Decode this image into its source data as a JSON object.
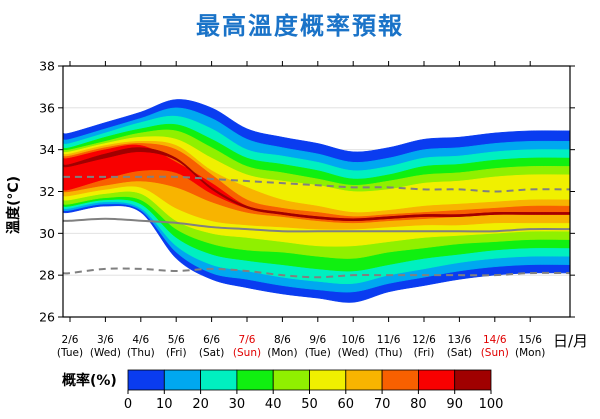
{
  "title": "最高溫度概率預報",
  "chart_data": {
    "type": "area",
    "title": "最高溫度概率預報",
    "ylabel": "溫度(°C)",
    "xlabel": "日/月",
    "ylim": [
      26,
      38
    ],
    "yticks": [
      26,
      28,
      30,
      32,
      34,
      36,
      38
    ],
    "categories": [
      {
        "date": "2/6",
        "day": "(Tue)",
        "red": false
      },
      {
        "date": "3/6",
        "day": "(Wed)",
        "red": false
      },
      {
        "date": "4/6",
        "day": "(Thu)",
        "red": false
      },
      {
        "date": "5/6",
        "day": "(Fri)",
        "red": false
      },
      {
        "date": "6/6",
        "day": "(Sat)",
        "red": false
      },
      {
        "date": "7/6",
        "day": "(Sun)",
        "red": true
      },
      {
        "date": "8/6",
        "day": "(Mon)",
        "red": false
      },
      {
        "date": "9/6",
        "day": "(Tue)",
        "red": false
      },
      {
        "date": "10/6",
        "day": "(Wed)",
        "red": false
      },
      {
        "date": "11/6",
        "day": "(Thu)",
        "red": false
      },
      {
        "date": "12/6",
        "day": "(Fri)",
        "red": false
      },
      {
        "date": "13/6",
        "day": "(Sat)",
        "red": false
      },
      {
        "date": "14/6",
        "day": "(Sun)",
        "red": true
      },
      {
        "date": "15/6",
        "day": "(Mon)",
        "red": false
      }
    ],
    "bands": [
      {
        "level": "0-10",
        "color": "#0a3cf0",
        "upper": [
          34.8,
          35.3,
          35.8,
          36.4,
          36.0,
          35.0,
          34.6,
          34.3,
          33.9,
          34.1,
          34.5,
          34.6,
          34.8,
          34.9
        ],
        "lower": [
          31.0,
          31.3,
          31.0,
          28.8,
          27.8,
          27.4,
          27.1,
          26.9,
          26.7,
          27.2,
          27.5,
          27.8,
          28.0,
          28.1
        ]
      },
      {
        "level": "10-20",
        "color": "#00a8f0",
        "upper": [
          34.5,
          35.0,
          35.5,
          36.0,
          35.5,
          34.5,
          34.1,
          33.8,
          33.4,
          33.6,
          34.0,
          34.1,
          34.3,
          34.4
        ],
        "lower": [
          31.1,
          31.4,
          31.1,
          29.1,
          28.1,
          27.8,
          27.5,
          27.3,
          27.2,
          27.6,
          27.9,
          28.2,
          28.4,
          28.5
        ]
      },
      {
        "level": "20-30",
        "color": "#00f0c0",
        "upper": [
          34.3,
          34.8,
          35.3,
          35.6,
          35.0,
          34.0,
          33.7,
          33.4,
          33.0,
          33.2,
          33.6,
          33.7,
          33.9,
          34.0
        ],
        "lower": [
          31.2,
          31.5,
          31.2,
          29.4,
          28.5,
          28.2,
          27.9,
          27.7,
          27.6,
          28.0,
          28.3,
          28.6,
          28.8,
          28.9
        ]
      },
      {
        "level": "30-40",
        "color": "#10f010",
        "upper": [
          34.1,
          34.6,
          35.0,
          35.2,
          34.5,
          33.6,
          33.3,
          33.0,
          32.6,
          32.8,
          33.2,
          33.3,
          33.5,
          33.6
        ],
        "lower": [
          31.3,
          31.6,
          31.4,
          29.8,
          29.0,
          28.7,
          28.5,
          28.3,
          28.2,
          28.5,
          28.8,
          29.0,
          29.2,
          29.3
        ]
      },
      {
        "level": "40-50",
        "color": "#90f000",
        "upper": [
          34.0,
          34.4,
          34.8,
          34.9,
          34.1,
          33.2,
          32.9,
          32.6,
          32.3,
          32.5,
          32.8,
          32.9,
          33.1,
          33.2
        ],
        "lower": [
          31.4,
          31.7,
          31.6,
          30.2,
          29.5,
          29.2,
          29.1,
          28.9,
          28.8,
          29.1,
          29.3,
          29.5,
          29.6,
          29.7
        ]
      },
      {
        "level": "50-60",
        "color": "#f0f000",
        "upper": [
          33.9,
          34.3,
          34.6,
          34.5,
          33.6,
          32.8,
          32.5,
          32.3,
          32.0,
          32.1,
          32.4,
          32.5,
          32.7,
          32.8
        ],
        "lower": [
          31.6,
          31.9,
          31.9,
          30.6,
          30.0,
          29.8,
          29.6,
          29.4,
          29.4,
          29.6,
          29.8,
          29.9,
          30.0,
          30.1
        ]
      },
      {
        "level": "60-70",
        "color": "#f8b400",
        "upper": [
          33.8,
          34.2,
          34.4,
          34.2,
          33.0,
          32.2,
          31.6,
          31.3,
          31.0,
          31.1,
          31.3,
          31.4,
          31.5,
          31.6
        ],
        "lower": [
          31.8,
          32.1,
          32.2,
          31.2,
          30.6,
          30.4,
          30.3,
          30.2,
          30.2,
          30.3,
          30.4,
          30.4,
          30.5,
          30.5
        ]
      },
      {
        "level": "70-80",
        "color": "#f86000",
        "upper": [
          33.7,
          34.1,
          34.3,
          34.0,
          32.8,
          31.6,
          31.2,
          31.0,
          30.8,
          30.9,
          31.0,
          31.1,
          31.2,
          31.3
        ],
        "lower": [
          32.0,
          32.3,
          32.5,
          32.2,
          31.5,
          31.0,
          30.8,
          30.6,
          30.5,
          30.6,
          30.7,
          30.8,
          30.9,
          30.9
        ]
      },
      {
        "level": "80-90",
        "color": "#f80000",
        "upper": [
          33.6,
          34.0,
          34.2,
          33.4,
          32.4,
          31.3,
          31.0,
          30.8,
          30.7,
          30.8,
          30.9,
          30.9,
          31.0,
          31.0
        ],
        "lower": [
          32.1,
          32.6,
          33.0,
          32.9,
          31.9,
          31.2,
          30.9,
          30.7,
          30.6,
          30.7,
          30.8,
          30.8,
          30.9,
          30.9
        ]
      },
      {
        "level": "90-100",
        "color": "#a00000",
        "upper": [
          33.3,
          33.8,
          34.1,
          33.6,
          32.2,
          31.3,
          31.0,
          30.8,
          30.7,
          30.8,
          30.9,
          30.9,
          31.0,
          31.0
        ],
        "lower": [
          33.2,
          33.6,
          33.9,
          33.5,
          32.1,
          31.2,
          30.9,
          30.7,
          30.6,
          30.7,
          30.8,
          30.8,
          30.9,
          30.9
        ]
      }
    ],
    "lines": [
      {
        "style": "dashed",
        "color": "#808080",
        "values": [
          32.7,
          32.7,
          32.7,
          32.7,
          32.6,
          32.5,
          32.4,
          32.3,
          32.2,
          32.2,
          32.1,
          32.1,
          32.0,
          32.1
        ]
      },
      {
        "style": "solid",
        "color": "#808080",
        "values": [
          30.6,
          30.7,
          30.6,
          30.5,
          30.3,
          30.2,
          30.1,
          30.1,
          30.1,
          30.1,
          30.1,
          30.1,
          30.1,
          30.2
        ]
      },
      {
        "style": "dashed",
        "color": "#808080",
        "values": [
          28.1,
          28.3,
          28.3,
          28.2,
          28.3,
          28.2,
          28.0,
          27.9,
          28.0,
          28.0,
          28.0,
          28.0,
          28.0,
          28.1
        ]
      }
    ],
    "legend": {
      "title": "概率(%)",
      "ticks": [
        "0",
        "10",
        "20",
        "30",
        "40",
        "50",
        "60",
        "70",
        "80",
        "90",
        "100"
      ],
      "colors": [
        "#0a3cf0",
        "#00a8f0",
        "#00f0c0",
        "#10f010",
        "#90f000",
        "#f0f000",
        "#f8b400",
        "#f86000",
        "#f80000",
        "#a00000"
      ]
    }
  }
}
